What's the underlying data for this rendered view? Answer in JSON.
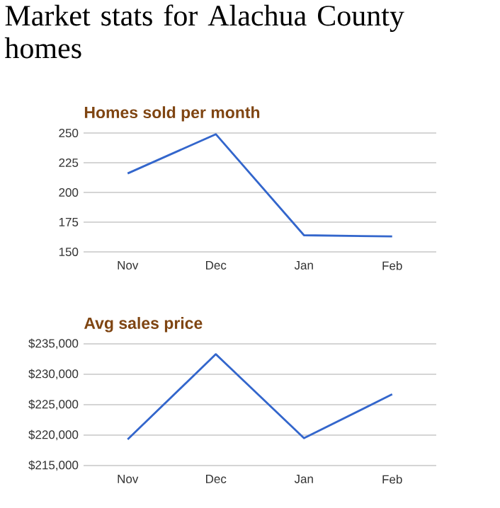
{
  "chart_data": [
    {
      "type": "other",
      "title": "Market stats for Alachua County homes"
    },
    {
      "type": "line",
      "title": "Homes sold per month",
      "categories": [
        "Nov",
        "Dec",
        "Jan",
        "Feb"
      ],
      "series": [
        {
          "color": "#3366cc",
          "values": [
            216,
            249,
            164,
            163
          ]
        }
      ],
      "ylim": [
        150,
        250
      ],
      "yticks": [
        150,
        175,
        200,
        225,
        250
      ],
      "grid": "y"
    },
    {
      "type": "line",
      "title": "Avg sales price",
      "categories": [
        "Nov",
        "Dec",
        "Jan",
        "Feb"
      ],
      "series": [
        {
          "color": "#3366cc",
          "values": [
            219300,
            233300,
            219500,
            226700
          ]
        }
      ],
      "ylim": [
        215000,
        235000
      ],
      "yticks": [
        {
          "value": 215000,
          "label": "$215,000"
        },
        {
          "value": 220000,
          "label": "$220,000"
        },
        {
          "value": 225000,
          "label": "$225,000"
        },
        {
          "value": 230000,
          "label": "$230,000"
        },
        {
          "value": 235000,
          "label": "$235,000"
        }
      ],
      "grid": "y"
    }
  ]
}
